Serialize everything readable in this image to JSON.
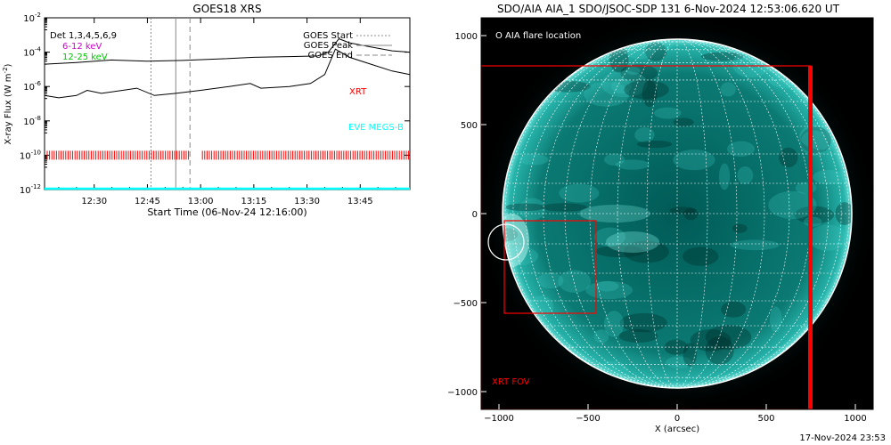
{
  "chart_data": [
    {
      "type": "line",
      "title": "GOES18 XRS",
      "xlabel": "Start Time (06-Nov-24 12:16:00)",
      "ylabel": "X-ray Flux (W m",
      "ylabel_superscript": "-2",
      "ylabel_close": ")",
      "y_scale": "log",
      "ylim": [
        1e-12,
        0.01
      ],
      "xlim": [
        "12:16",
        "13:59"
      ],
      "x_ticks": [
        "12:30",
        "12:45",
        "13:00",
        "13:15",
        "13:30",
        "13:45"
      ],
      "y_ticks": [
        {
          "value": 0.01,
          "mant": "10",
          "exp": "-2"
        },
        {
          "value": 0.0001,
          "mant": "10",
          "exp": "-4"
        },
        {
          "value": 1e-06,
          "mant": "10",
          "exp": "-6"
        },
        {
          "value": 1e-08,
          "mant": "10",
          "exp": "-8"
        },
        {
          "value": 1e-10,
          "mant": "10",
          "exp": "-10"
        },
        {
          "value": 1e-12,
          "mant": "10",
          "exp": "-12"
        }
      ],
      "detector_label": "Det 1,3,4,5,6,9",
      "energy_band_1": "6-12 keV",
      "energy_band_2": "12-25 keV",
      "legend": {
        "start": "GOES Start",
        "peak": "GOES Peak",
        "end": "GOES End",
        "placement": "top-right"
      },
      "label_xrt": "XRT",
      "label_eve": "EVE MEGS-B",
      "markers": {
        "goes_start": "12:46",
        "goes_peak": "12:53",
        "goes_end": "12:57"
      },
      "series": [
        {
          "name": "upper",
          "color": "#000000",
          "points": [
            [
              "12:16",
              2e-05
            ],
            [
              "12:25",
              2.5e-05
            ],
            [
              "12:35",
              3.5e-05
            ],
            [
              "12:45",
              3e-05
            ],
            [
              "12:55",
              3.3e-05
            ],
            [
              "13:05",
              4e-05
            ],
            [
              "13:15",
              5e-05
            ],
            [
              "13:25",
              5.5e-05
            ],
            [
              "13:33",
              6e-05
            ],
            [
              "13:36",
              0.0001
            ],
            [
              "13:39",
              0.0006
            ],
            [
              "13:42",
              0.00035
            ],
            [
              "13:48",
              0.0002
            ],
            [
              "13:54",
              0.00012
            ],
            [
              "13:59",
              0.0001
            ]
          ]
        },
        {
          "name": "lower",
          "color": "#000000",
          "points": [
            [
              "12:16",
              3e-07
            ],
            [
              "12:20",
              2.2e-07
            ],
            [
              "12:25",
              3e-07
            ],
            [
              "12:28",
              6e-07
            ],
            [
              "12:32",
              4e-07
            ],
            [
              "12:38",
              6e-07
            ],
            [
              "12:42",
              8e-07
            ],
            [
              "12:47",
              3e-07
            ],
            [
              "12:53",
              4e-07
            ],
            [
              "13:00",
              6e-07
            ],
            [
              "13:08",
              1e-06
            ],
            [
              "13:14",
              1.5e-06
            ],
            [
              "13:17",
              8e-07
            ],
            [
              "13:25",
              1e-06
            ],
            [
              "13:31",
              1.5e-06
            ],
            [
              "13:35",
              5e-06
            ],
            [
              "13:38",
              0.00015
            ],
            [
              "13:42",
              5e-05
            ],
            [
              "13:48",
              2e-05
            ],
            [
              "13:54",
              8e-06
            ],
            [
              "13:59",
              5e-06
            ]
          ]
        }
      ],
      "xrt_band": {
        "color": "#ff0000",
        "level": 1e-10,
        "gap": [
          "12:57",
          "13:00"
        ]
      },
      "eve_band": {
        "color": "#00ffff",
        "level": 1e-12
      }
    },
    {
      "type": "image",
      "title": "SDO/AIA AIA_1 SDO/JSOC-SDP 131  6-Nov-2024 12:53:06.620 UT",
      "xlabel": "X (arcsec)",
      "ylabel": "",
      "xlim": [
        -1100,
        1100
      ],
      "ylim": [
        -1100,
        1100
      ],
      "x_ticks": [
        -1000,
        -500,
        0,
        500,
        1000
      ],
      "y_ticks": [
        1000,
        500,
        0,
        -500,
        -1000
      ],
      "x_tick_labels": [
        "−1000",
        "−500",
        "0",
        "500",
        "1000"
      ],
      "y_tick_labels": [
        "1000",
        "500",
        "0",
        "−500",
        "−1000"
      ],
      "solar_radius": 980,
      "legend_label": "O AIA flare location",
      "fov_label": "XRT FOV",
      "flare_location": {
        "x": -960,
        "y": -160,
        "r": 100
      },
      "xrt_fov": {
        "x0": -1100,
        "x1": 750,
        "y0": -1100,
        "y1": 830
      },
      "inner_box": {
        "x0": -970,
        "x1": -455,
        "y0": -560,
        "y1": -40
      },
      "colors": {
        "disk": "#00a9a3",
        "grid": "#ffffff",
        "fov": "#ff0000"
      }
    }
  ],
  "footer_timestamp": "17-Nov-2024 23:53"
}
